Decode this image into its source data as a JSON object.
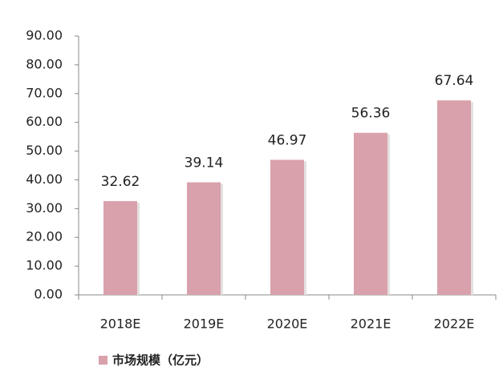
{
  "chart_data": {
    "type": "bar",
    "categories": [
      "2018E",
      "2019E",
      "2020E",
      "2021E",
      "2022E"
    ],
    "series": [
      {
        "name": "市场规模（亿元）",
        "color": "#d9a1ab",
        "values": [
          32.62,
          39.14,
          46.97,
          56.36,
          67.64
        ]
      }
    ],
    "ylim": [
      0,
      90
    ],
    "yticks": [
      {
        "value": 0,
        "label": "0.00"
      },
      {
        "value": 10,
        "label": "10.00"
      },
      {
        "value": 20,
        "label": "20.00"
      },
      {
        "value": 30,
        "label": "30.00"
      },
      {
        "value": 40,
        "label": "40.00"
      },
      {
        "value": 50,
        "label": "50.00"
      },
      {
        "value": 60,
        "label": "60.00"
      },
      {
        "value": 70,
        "label": "70.00"
      },
      {
        "value": 80,
        "label": "80.00"
      },
      {
        "value": 90,
        "label": "90.00"
      }
    ],
    "grid": false,
    "legend": "bottom-left"
  }
}
